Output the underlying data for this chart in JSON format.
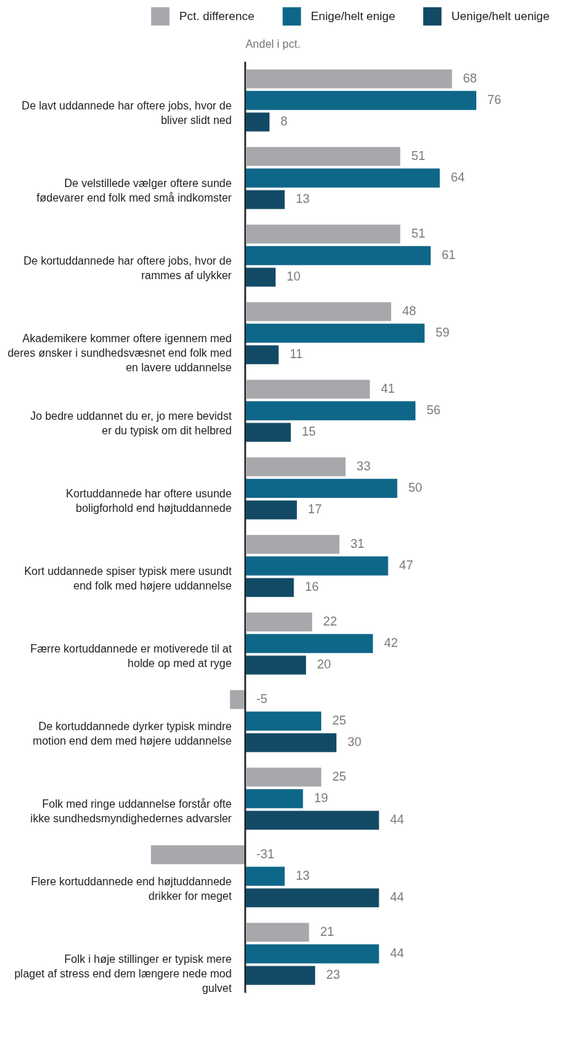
{
  "chart_data": {
    "type": "bar",
    "orientation": "horizontal",
    "xlabel": "Andel i pct.",
    "legend": "top",
    "data_labels": true,
    "categories": [
      "De lavt uddannede har oftere jobs, hvor de bliver slidt ned",
      "De velstillede vælger oftere sunde fødevarer end folk med små indkomster",
      "De kortuddannede har oftere jobs, hvor de rammes af ulykker",
      "Akademikere kommer oftere igennem med deres ønsker i sundhedsvæsnet end folk med en lavere uddannelse",
      "Jo bedre uddannet du er, jo mere bevidst er du typisk om dit helbred",
      "Kortuddannede har oftere usunde boligforhold end højtuddannede",
      "Kort uddannede spiser typisk mere usundt end folk med højere uddannelse",
      "Færre kortuddannede er motiverede til at holde op med at ryge",
      "De kortuddannede dyrker typisk mindre motion end dem med højere uddannelse",
      "Folk med ringe uddannelse forstår ofte ikke sundhedsmyndighedernes advarsler",
      "Flere kortuddannede end højtuddannede drikker for meget",
      "Folk i høje stillinger er typisk mere plaget af stress end dem længere nede mod gulvet"
    ],
    "series": [
      {
        "name": "Pct. difference",
        "color": "#a7a8ac",
        "values": [
          68,
          51,
          51,
          48,
          41,
          33,
          31,
          22,
          -5,
          25,
          -31,
          21
        ]
      },
      {
        "name": "Enige/helt enige",
        "color": "#0e6688",
        "values": [
          76,
          64,
          61,
          59,
          56,
          50,
          47,
          42,
          25,
          19,
          13,
          44
        ]
      },
      {
        "name": "Uenige/helt uenige",
        "color": "#124a65",
        "values": [
          8,
          13,
          10,
          11,
          15,
          17,
          16,
          20,
          30,
          44,
          44,
          23
        ]
      }
    ]
  }
}
